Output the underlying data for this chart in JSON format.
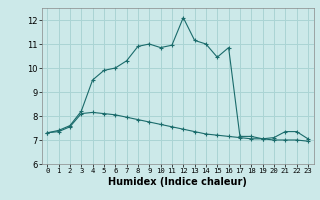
{
  "xlabel": "Humidex (Indice chaleur)",
  "bg_color": "#cce9e9",
  "grid_color": "#aad4d4",
  "line_color": "#1a6b6b",
  "xlim": [
    -0.5,
    23.5
  ],
  "ylim": [
    6,
    12.5
  ],
  "yticks": [
    6,
    7,
    8,
    9,
    10,
    11,
    12
  ],
  "xticks": [
    0,
    1,
    2,
    3,
    4,
    5,
    6,
    7,
    8,
    9,
    10,
    11,
    12,
    13,
    14,
    15,
    16,
    17,
    18,
    19,
    20,
    21,
    22,
    23
  ],
  "line1_x": [
    0,
    1,
    2,
    3,
    4,
    5,
    6,
    7,
    8,
    9,
    10,
    11,
    12,
    13,
    14,
    15,
    16,
    17,
    18,
    19,
    20,
    21,
    22,
    23
  ],
  "line1_y": [
    7.3,
    7.4,
    7.6,
    8.2,
    9.5,
    9.9,
    10.0,
    10.3,
    10.9,
    11.0,
    10.85,
    10.95,
    12.1,
    11.15,
    11.0,
    10.45,
    10.85,
    7.15,
    7.15,
    7.05,
    7.1,
    7.35,
    7.35,
    7.05
  ],
  "line2_x": [
    0,
    1,
    2,
    3,
    4,
    5,
    6,
    7,
    8,
    9,
    10,
    11,
    12,
    13,
    14,
    15,
    16,
    17,
    18,
    19,
    20,
    21,
    22,
    23
  ],
  "line2_y": [
    7.3,
    7.35,
    7.55,
    8.1,
    8.15,
    8.1,
    8.05,
    7.95,
    7.85,
    7.75,
    7.65,
    7.55,
    7.45,
    7.35,
    7.25,
    7.2,
    7.15,
    7.1,
    7.05,
    7.05,
    7.0,
    7.0,
    7.0,
    6.95
  ]
}
